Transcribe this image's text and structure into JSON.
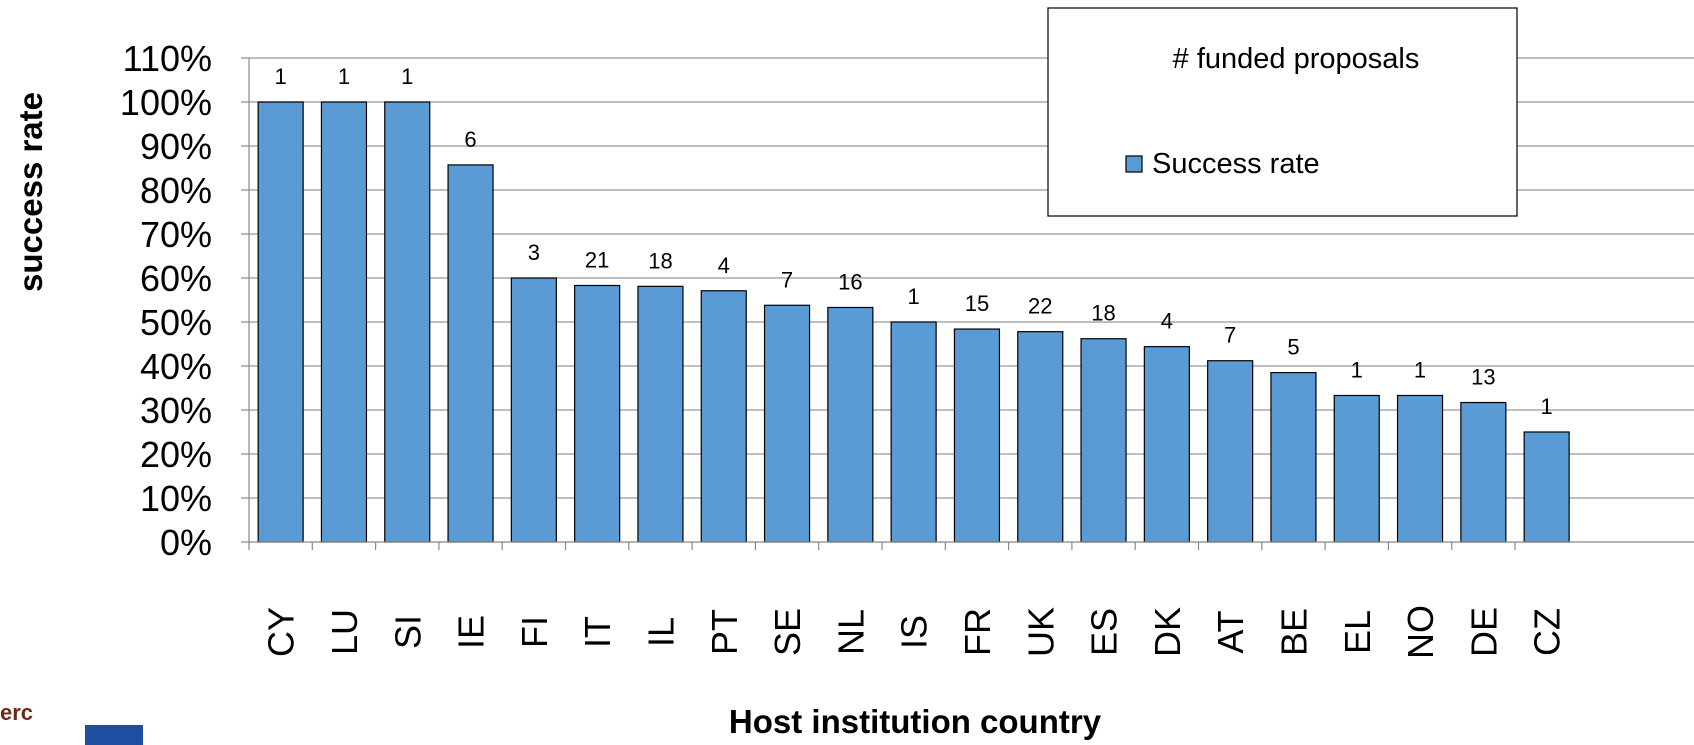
{
  "chart_data": {
    "type": "bar",
    "ylabel": "success rate",
    "xlabel": "Host institution country",
    "ylim": [
      0,
      110
    ],
    "yticks": [
      "0%",
      "10%",
      "20%",
      "30%",
      "40%",
      "50%",
      "60%",
      "70%",
      "80%",
      "90%",
      "100%",
      "110%"
    ],
    "categories": [
      "CY",
      "LU",
      "SI",
      "IE",
      "FI",
      "IT",
      "IL",
      "PT",
      "SE",
      "NL",
      "IS",
      "FR",
      "UK",
      "ES",
      "DK",
      "AT",
      "BE",
      "EL",
      "NO",
      "DE",
      "CZ"
    ],
    "series": [
      {
        "name": "Success rate",
        "values": [
          100,
          100,
          100,
          85.7,
          60,
          58.3,
          58.1,
          57.1,
          53.8,
          53.3,
          50,
          48.4,
          47.8,
          46.2,
          44.4,
          41.2,
          38.5,
          33.3,
          33.3,
          31.7,
          25
        ]
      }
    ],
    "data_labels": [
      "1",
      "1",
      "1",
      "6",
      "3",
      "21",
      "18",
      "4",
      "7",
      "16",
      "1",
      "15",
      "22",
      "18",
      "4",
      "7",
      "5",
      "1",
      "1",
      "13",
      "1"
    ],
    "legend": {
      "title": "# funded proposals",
      "entries": [
        "Success rate"
      ],
      "position": "top-right"
    },
    "grid": true,
    "colors": {
      "bar": "#5b9bd5",
      "bar_edge": "#000000",
      "grid": "#999999"
    }
  },
  "logos": {
    "erc_text": "erc"
  }
}
